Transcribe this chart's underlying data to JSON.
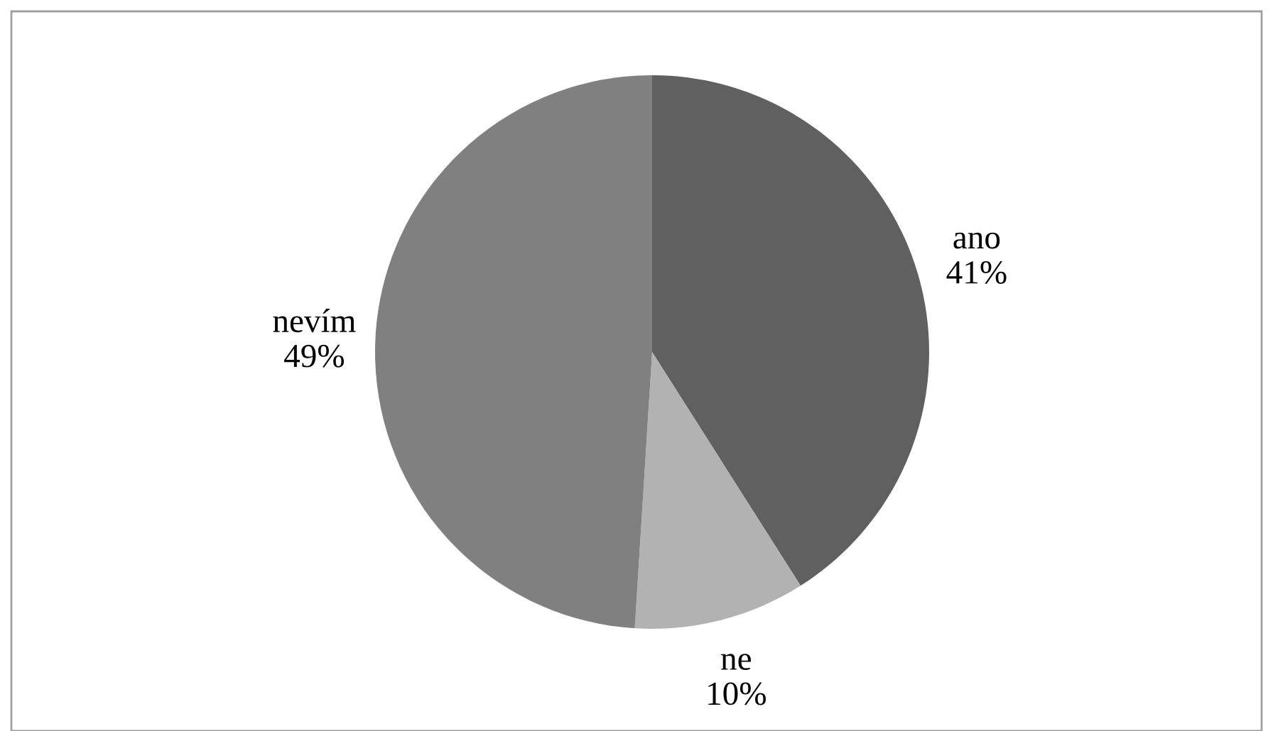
{
  "chart_data": {
    "type": "pie",
    "categories": [
      "ano",
      "ne",
      "nevím"
    ],
    "values": [
      41,
      10,
      49
    ],
    "colors": [
      "#606060",
      "#b2b2b2",
      "#808080"
    ],
    "value_labels": [
      "41%",
      "10%",
      "49%"
    ],
    "legend": false
  }
}
